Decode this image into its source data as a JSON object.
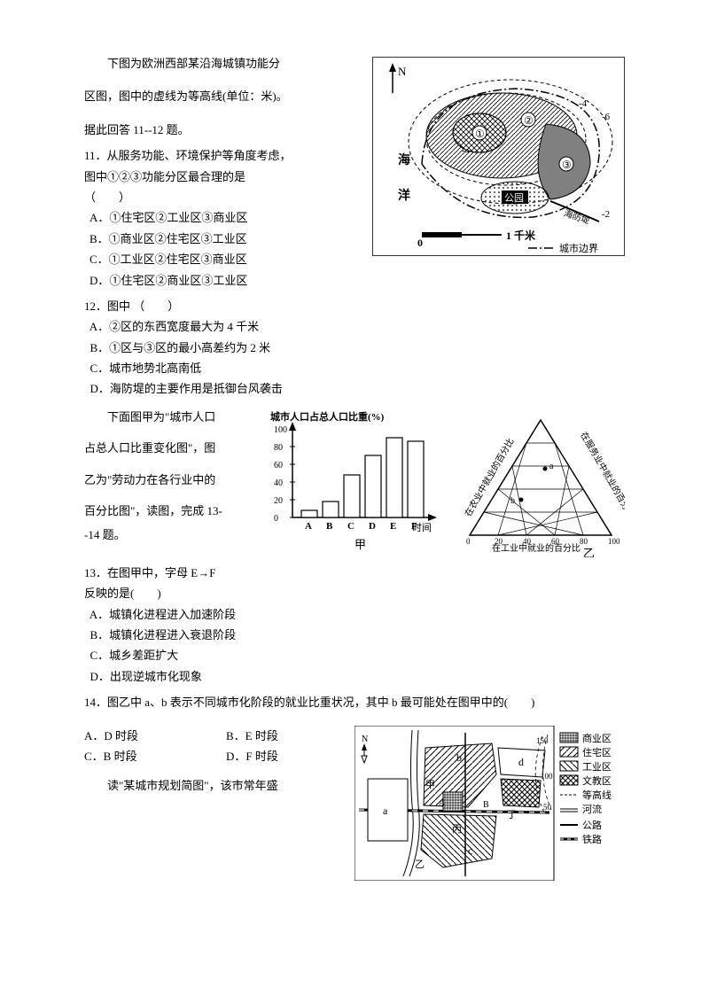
{
  "section1": {
    "intro1": "下图为欧洲西部某沿海城镇功能分",
    "intro2": "区图，图中的虚线为等高线(单位：米)。",
    "intro3": "据此回答 11--12 题。",
    "q11": {
      "stem1": "11．从服务功能、环境保护等角度考虑，",
      "stem2": "图中①②③功能分区最合理的是",
      "stem3": "（　　）",
      "optA": "A．①住宅区②工业区③商业区",
      "optB": "B．①商业区②住宅区③工业区",
      "optC": "C．①工业区②住宅区③商业区",
      "optD": "D．①住宅区②商业区③工业区"
    },
    "q12": {
      "stem": "12．图中 （　　）",
      "optA": "  A．②区的东西宽度最大为 4 千米",
      "optB": "  B．①区与③区的最小高差约为 2 米",
      "optC": "  C．城市地势北高南低",
      "optD": "  D．海防堤的主要作用是抵御台风袭击"
    },
    "fig": {
      "north": "N",
      "z1": "①",
      "z2": "②",
      "z3": "③",
      "park": "公园",
      "sea1": "海",
      "sea2": "洋",
      "scale0": "0",
      "scale1": "1 千米",
      "hfd": "海防堤",
      "legend": "城市边界",
      "c2": "-2",
      "c4": "-4",
      "c6": "-6",
      "c4b": "-4"
    }
  },
  "section2": {
    "intro1": "下面图甲为\"城市人口",
    "intro2": "占总人口比重变化图\"，图",
    "intro3": "乙为\"劳动力在各行业中的",
    "intro4": "百分比图\"，读图，完成 13-",
    "intro5": "-14 题。",
    "q13": {
      "stem1": "13．在图甲中，字母 E→F",
      "stem2": "反映的是(　　)",
      "optA": "  A．城镇化进程进入加速阶段",
      "optB": "  B．城镇化进程进入衰退阶段",
      "optC": "  C．城乡差距扩大",
      "optD": "  D．出现逆城市化现象"
    },
    "q14": {
      "stem": "14．图乙中 a、b 表示不同城市化阶段的就业比重状况，其中 b 最可能处在图甲中的(　　)",
      "optA": "A．D 时段",
      "optB": "B．E 时段",
      "optC": "C．B 时段",
      "optD": "D．F 时段"
    },
    "fig_jia": {
      "title": "城市人口占总人口比重(%)",
      "y": [
        "0",
        "20",
        "40",
        "60",
        "80",
        "100"
      ],
      "x": [
        "A",
        "B",
        "C",
        "D",
        "E",
        "F"
      ],
      "xlabel": "时间",
      "name": "甲",
      "bars": [
        8,
        18,
        48,
        70,
        90,
        86
      ]
    },
    "fig_yi": {
      "name": "乙",
      "left": "在农业中就业的百分比",
      "right": "在服务业中就业的百分比",
      "bottom": "在工业中就业的百分比",
      "ticks": [
        "0",
        "20",
        "40",
        "60",
        "80",
        "100"
      ],
      "a": "a",
      "b": "b"
    }
  },
  "section3": {
    "intro": "读\"某城市规划简图\"，该市常年盛",
    "fig": {
      "n": "N",
      "a": "a",
      "b": "b",
      "c": "c",
      "d": "d",
      "jia": "甲",
      "yi": "乙",
      "bing": "丙",
      "ding": "丁",
      "A": "A",
      "B": "B",
      "c50": "50",
      "c100": "100",
      "c150": "150",
      "leg_sy": "商业区",
      "leg_zz": "住宅区",
      "leg_gy": "工业区",
      "leg_wj": "文教区",
      "leg_dgx": "等高线",
      "leg_hl": "河流",
      "leg_gl": "公路",
      "leg_tl": "铁路"
    }
  }
}
